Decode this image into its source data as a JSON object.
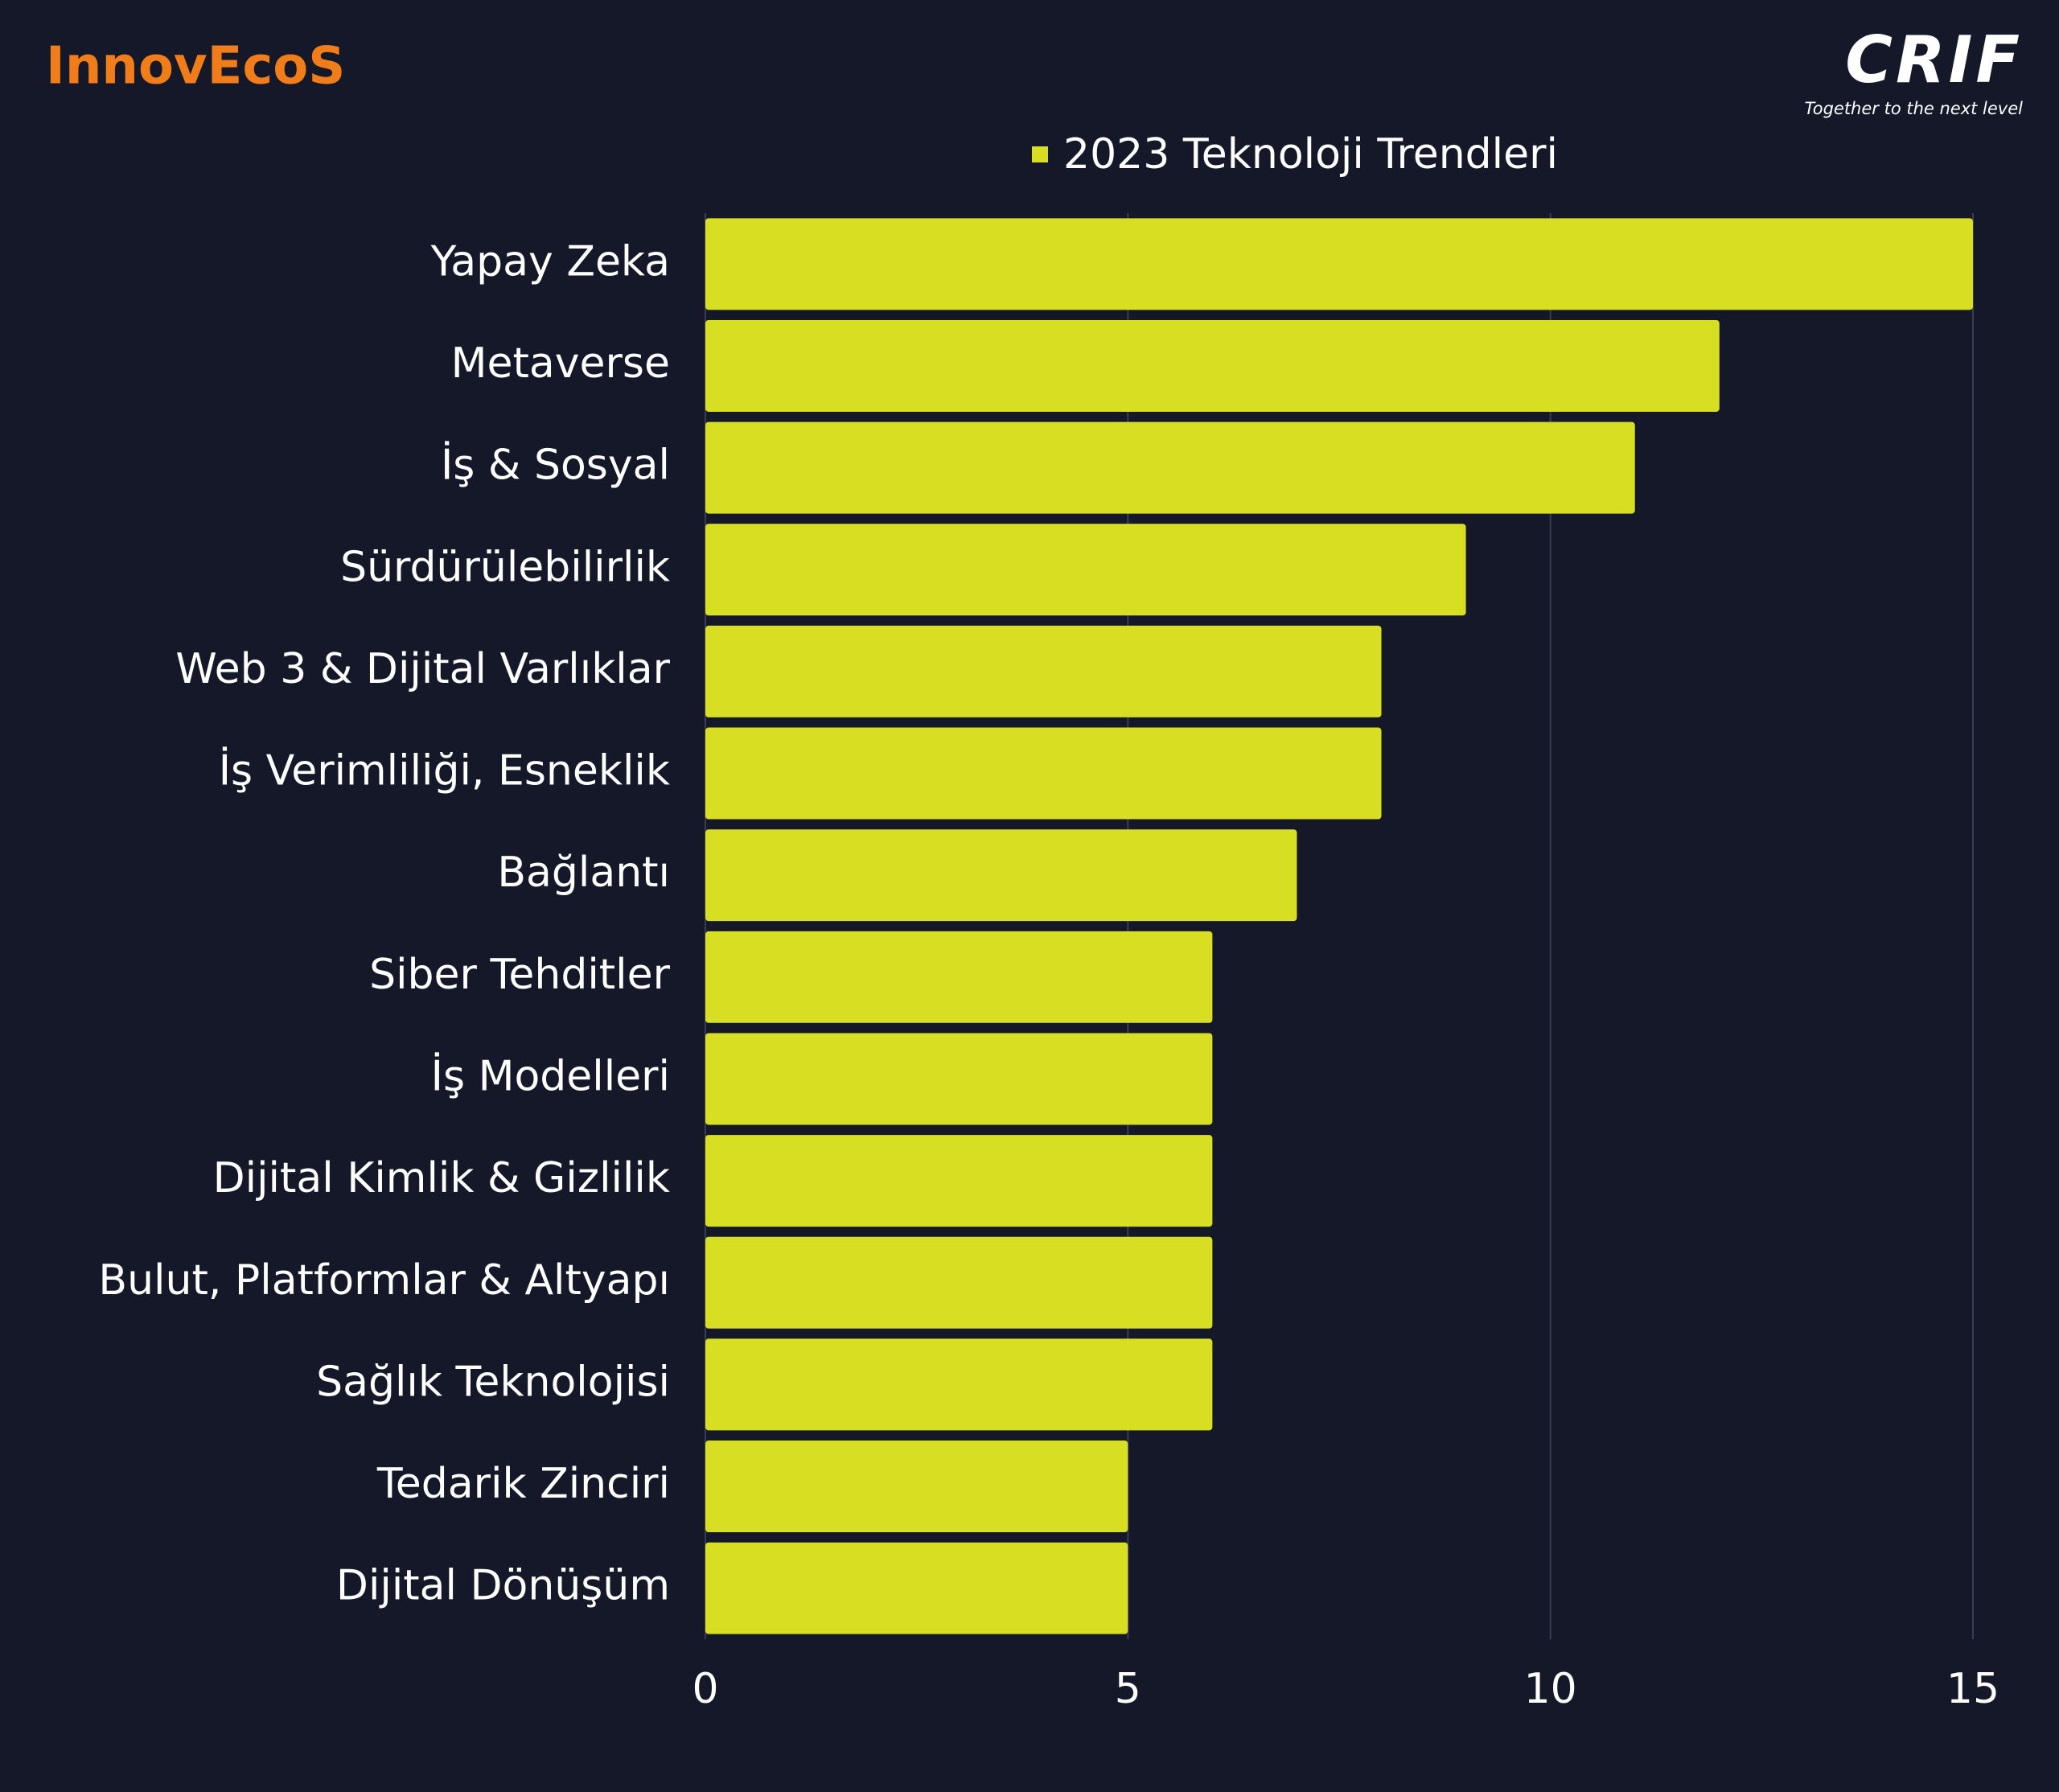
{
  "brand": {
    "left": "InnovEcoS",
    "right": "CRIF",
    "right_tagline": "Together to the next level"
  },
  "chart_data": {
    "type": "bar",
    "orientation": "horizontal",
    "categories": [
      "Yapay Zeka",
      "Metaverse",
      "İş & Sosyal",
      "Sürdürülebilirlik",
      "Web 3 & Dijital Varlıklar",
      "İş Verimliliği, Esneklik",
      "Bağlantı",
      "Siber Tehditler",
      "İş Modelleri",
      "Dijital Kimlik  & Gizlilik",
      "Bulut, Platformlar & Altyapı",
      "Sağlık Teknolojisi",
      "Tedarik Zinciri",
      "Dijital Dönüşüm"
    ],
    "series": [
      {
        "name": "2023 Teknoloji Trendleri",
        "color": "#d8df23",
        "values": [
          15,
          12,
          11,
          9,
          8,
          8,
          7,
          6,
          6,
          6,
          6,
          6,
          5,
          5
        ]
      }
    ],
    "xlim": [
      0,
      15
    ],
    "xticks": [
      0,
      5,
      10,
      15
    ],
    "grid": true,
    "legend": "top"
  }
}
